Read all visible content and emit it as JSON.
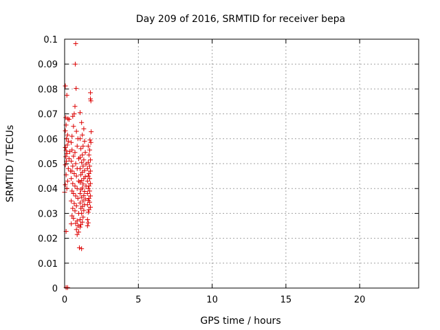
{
  "chart_data": {
    "type": "scatter",
    "title": "Day 209 of 2016, SRMTID for receiver bepa",
    "xlabel": "GPS time / hours",
    "ylabel": "SRMTID / TECUs",
    "xlim": [
      0,
      24
    ],
    "ylim": [
      0,
      0.1
    ],
    "grid": true,
    "marker": "+",
    "x_ticks": [
      0,
      5,
      10,
      15,
      20
    ],
    "x_tick_labels": [
      "0",
      "5",
      "10",
      "15",
      "20"
    ],
    "y_ticks": [
      0,
      0.01,
      0.02,
      0.03,
      0.04,
      0.05,
      0.06,
      0.07,
      0.08,
      0.09,
      0.1
    ],
    "y_tick_labels": [
      "0",
      "0.01",
      "0.02",
      "0.03",
      "0.04",
      "0.05",
      "0.06",
      "0.07",
      "0.08",
      "0.09",
      "0.1"
    ],
    "series": [
      {
        "name": "SRMTID",
        "color": "#dd0000",
        "points": [
          [
            0.05,
            0.0812
          ],
          [
            0.15,
            0.0775
          ],
          [
            0.08,
            0.0685
          ],
          [
            0.22,
            0.068
          ],
          [
            0.3,
            0.0678
          ],
          [
            0.1,
            0.0655
          ],
          [
            0.05,
            0.0632
          ],
          [
            0.2,
            0.0615
          ],
          [
            0.12,
            0.06
          ],
          [
            0.25,
            0.059
          ],
          [
            0.18,
            0.0575
          ],
          [
            0.05,
            0.0565
          ],
          [
            0.1,
            0.0553
          ],
          [
            0.35,
            0.0548
          ],
          [
            0.15,
            0.054
          ],
          [
            0.08,
            0.0528
          ],
          [
            0.3,
            0.052
          ],
          [
            0.12,
            0.051
          ],
          [
            0.05,
            0.0495
          ],
          [
            0.25,
            0.048
          ],
          [
            0.4,
            0.047
          ],
          [
            0.1,
            0.0455
          ],
          [
            0.2,
            0.043
          ],
          [
            0.05,
            0.0415
          ],
          [
            0.15,
            0.04
          ],
          [
            0.0,
            0.0385
          ],
          [
            0.1,
            0.0228
          ],
          [
            0.1,
            0.0002
          ],
          [
            0.2,
            0.0002
          ],
          [
            0.75,
            0.0982
          ],
          [
            0.72,
            0.09
          ],
          [
            0.78,
            0.0802
          ],
          [
            0.7,
            0.073
          ],
          [
            0.65,
            0.07
          ],
          [
            0.55,
            0.069
          ],
          [
            0.6,
            0.065
          ],
          [
            0.8,
            0.063
          ],
          [
            0.5,
            0.061
          ],
          [
            0.9,
            0.06
          ],
          [
            0.45,
            0.0585
          ],
          [
            0.85,
            0.057
          ],
          [
            0.5,
            0.0555
          ],
          [
            0.7,
            0.0545
          ],
          [
            0.6,
            0.053
          ],
          [
            0.95,
            0.052
          ],
          [
            0.45,
            0.051
          ],
          [
            0.75,
            0.05
          ],
          [
            0.55,
            0.049
          ],
          [
            0.85,
            0.048
          ],
          [
            0.5,
            0.047
          ],
          [
            0.65,
            0.046
          ],
          [
            0.8,
            0.045
          ],
          [
            0.45,
            0.044
          ],
          [
            0.95,
            0.043
          ],
          [
            0.55,
            0.042
          ],
          [
            0.7,
            0.041
          ],
          [
            0.85,
            0.04
          ],
          [
            0.5,
            0.039
          ],
          [
            0.6,
            0.038
          ],
          [
            0.75,
            0.037
          ],
          [
            0.9,
            0.036
          ],
          [
            0.45,
            0.035
          ],
          [
            0.65,
            0.034
          ],
          [
            0.8,
            0.033
          ],
          [
            0.55,
            0.032
          ],
          [
            0.7,
            0.031
          ],
          [
            0.95,
            0.03
          ],
          [
            0.5,
            0.029
          ],
          [
            0.6,
            0.028
          ],
          [
            0.85,
            0.027
          ],
          [
            0.75,
            0.026
          ],
          [
            0.45,
            0.0258
          ],
          [
            0.9,
            0.025
          ],
          [
            0.8,
            0.0235
          ],
          [
            0.95,
            0.0225
          ],
          [
            0.85,
            0.0215
          ],
          [
            1.0,
            0.0162
          ],
          [
            1.15,
            0.0158
          ],
          [
            1.05,
            0.0705
          ],
          [
            1.15,
            0.0665
          ],
          [
            1.3,
            0.064
          ],
          [
            1.2,
            0.0615
          ],
          [
            1.05,
            0.06
          ],
          [
            1.35,
            0.059
          ],
          [
            1.25,
            0.057
          ],
          [
            1.1,
            0.056
          ],
          [
            1.4,
            0.0545
          ],
          [
            1.2,
            0.0535
          ],
          [
            1.05,
            0.0525
          ],
          [
            1.3,
            0.0515
          ],
          [
            1.15,
            0.0505
          ],
          [
            1.45,
            0.0498
          ],
          [
            1.25,
            0.049
          ],
          [
            1.05,
            0.048
          ],
          [
            1.35,
            0.0472
          ],
          [
            1.2,
            0.0465
          ],
          [
            1.1,
            0.0455
          ],
          [
            1.4,
            0.0448
          ],
          [
            1.3,
            0.044
          ],
          [
            1.15,
            0.0432
          ],
          [
            1.05,
            0.0425
          ],
          [
            1.25,
            0.0418
          ],
          [
            1.45,
            0.041
          ],
          [
            1.2,
            0.0402
          ],
          [
            1.1,
            0.0395
          ],
          [
            1.35,
            0.0388
          ],
          [
            1.05,
            0.038
          ],
          [
            1.3,
            0.0372
          ],
          [
            1.15,
            0.0365
          ],
          [
            1.4,
            0.0358
          ],
          [
            1.25,
            0.035
          ],
          [
            1.05,
            0.0342
          ],
          [
            1.35,
            0.0335
          ],
          [
            1.2,
            0.0328
          ],
          [
            1.1,
            0.032
          ],
          [
            1.3,
            0.0312
          ],
          [
            1.15,
            0.03
          ],
          [
            1.25,
            0.0285
          ],
          [
            1.05,
            0.0275
          ],
          [
            1.2,
            0.0265
          ],
          [
            1.1,
            0.0255
          ],
          [
            1.05,
            0.0245
          ],
          [
            1.75,
            0.0785
          ],
          [
            1.75,
            0.076
          ],
          [
            1.78,
            0.0752
          ],
          [
            1.8,
            0.0628
          ],
          [
            1.72,
            0.0595
          ],
          [
            1.78,
            0.0585
          ],
          [
            1.6,
            0.057
          ],
          [
            1.7,
            0.0555
          ],
          [
            1.65,
            0.0535
          ],
          [
            1.75,
            0.0515
          ],
          [
            1.6,
            0.0505
          ],
          [
            1.7,
            0.049
          ],
          [
            1.55,
            0.048
          ],
          [
            1.75,
            0.047
          ],
          [
            1.65,
            0.046
          ],
          [
            1.6,
            0.045
          ],
          [
            1.7,
            0.044
          ],
          [
            1.55,
            0.043
          ],
          [
            1.75,
            0.042
          ],
          [
            1.65,
            0.041
          ],
          [
            1.6,
            0.04
          ],
          [
            1.7,
            0.039
          ],
          [
            1.55,
            0.038
          ],
          [
            1.75,
            0.037
          ],
          [
            1.65,
            0.036
          ],
          [
            1.6,
            0.0352
          ],
          [
            1.7,
            0.0345
          ],
          [
            1.55,
            0.0335
          ],
          [
            1.75,
            0.0325
          ],
          [
            1.65,
            0.0315
          ],
          [
            1.6,
            0.0305
          ],
          [
            1.55,
            0.0275
          ],
          [
            1.6,
            0.0262
          ],
          [
            1.55,
            0.025
          ]
        ]
      }
    ]
  }
}
